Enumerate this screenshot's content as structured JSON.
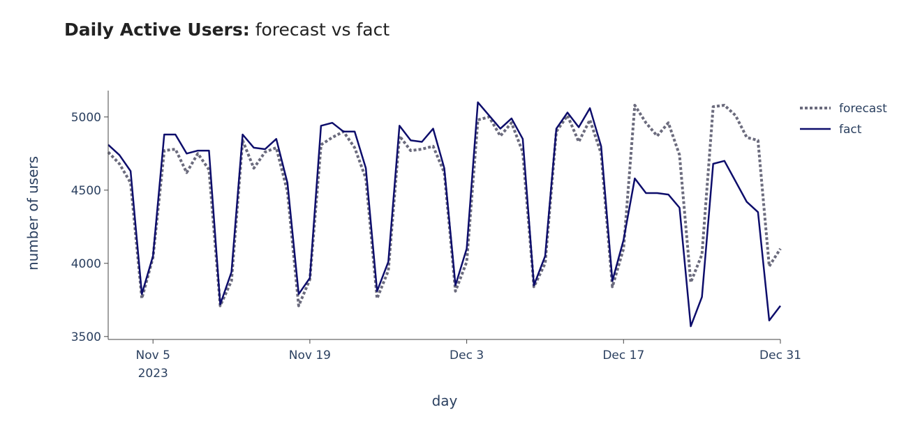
{
  "chart_data": {
    "type": "line",
    "title_bold": "Daily Active Users:",
    "title_rest": " forecast vs fact",
    "xlabel": "day",
    "ylabel": "number of users",
    "x_start": "2023-11-01",
    "x_end": "2023-12-31",
    "ylim": [
      3480,
      5180
    ],
    "grid": false,
    "legend_position": "top-right",
    "x_ticks": [
      {
        "date": "2023-11-05",
        "label": "Nov 5",
        "sublabel": "2023"
      },
      {
        "date": "2023-11-19",
        "label": "Nov 19",
        "sublabel": ""
      },
      {
        "date": "2023-12-03",
        "label": "Dec 3",
        "sublabel": ""
      },
      {
        "date": "2023-12-17",
        "label": "Dec 17",
        "sublabel": ""
      },
      {
        "date": "2023-12-31",
        "label": "Dec 31",
        "sublabel": ""
      }
    ],
    "y_ticks": [
      3500,
      4000,
      4500,
      5000
    ],
    "series": [
      {
        "name": "forecast",
        "color": "#6b6b7d",
        "style": "dotted",
        "values": [
          4760,
          4680,
          4550,
          3760,
          4040,
          4770,
          4780,
          4620,
          4750,
          4640,
          3710,
          3880,
          4840,
          4650,
          4760,
          4790,
          4490,
          3710,
          3890,
          4810,
          4860,
          4900,
          4790,
          4580,
          3760,
          3950,
          4870,
          4770,
          4780,
          4800,
          4620,
          3810,
          4010,
          4980,
          5000,
          4870,
          4960,
          4760,
          3840,
          4000,
          4900,
          5010,
          4830,
          4980,
          4750,
          3840,
          4100,
          5080,
          4960,
          4870,
          4960,
          4740,
          3870,
          4060,
          5070,
          5080,
          5010,
          4860,
          4840,
          3980,
          4100
        ]
      },
      {
        "name": "fact",
        "color": "#0d0d6b",
        "style": "solid",
        "values": [
          4810,
          4740,
          4630,
          3790,
          4050,
          4880,
          4880,
          4750,
          4770,
          4770,
          3720,
          3940,
          4880,
          4790,
          4780,
          4850,
          4550,
          3790,
          3900,
          4940,
          4960,
          4900,
          4900,
          4650,
          3810,
          4010,
          4940,
          4840,
          4830,
          4920,
          4650,
          3850,
          4100,
          5100,
          5010,
          4920,
          4990,
          4850,
          3850,
          4050,
          4920,
          5030,
          4930,
          5060,
          4800,
          3880,
          4160,
          4580,
          4480,
          4480,
          4470,
          4380,
          3570,
          3770,
          4680,
          4700,
          4560,
          4420,
          4350,
          3610,
          3710
        ]
      }
    ]
  }
}
